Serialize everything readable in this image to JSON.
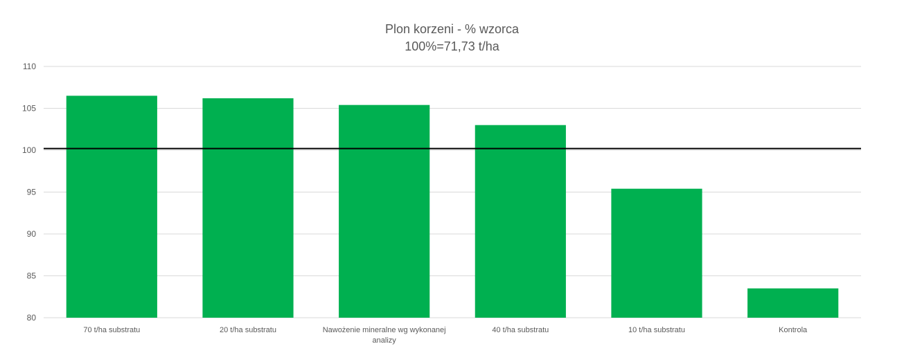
{
  "chart_data": {
    "type": "bar",
    "title": "Plon korzeni - % wzorca",
    "subtitle": "100%=71,73 t/ha",
    "categories": [
      [
        "70 t/ha substratu"
      ],
      [
        "20 t/ha substratu"
      ],
      [
        "Nawożenie mineralne wg wykonanej",
        "analizy"
      ],
      [
        "40 t/ha substratu"
      ],
      [
        "10 t/ha substratu"
      ],
      [
        "Kontrola"
      ]
    ],
    "values": [
      106.5,
      106.2,
      105.4,
      103.0,
      95.4,
      83.5
    ],
    "ylim": [
      80,
      110
    ],
    "yticks": [
      80,
      85,
      90,
      95,
      100,
      105,
      110
    ],
    "reference_line": 100.2,
    "grid": true,
    "bar_color": "#00b050",
    "grid_color": "#d9d9d9",
    "reference_color": "#000000"
  }
}
